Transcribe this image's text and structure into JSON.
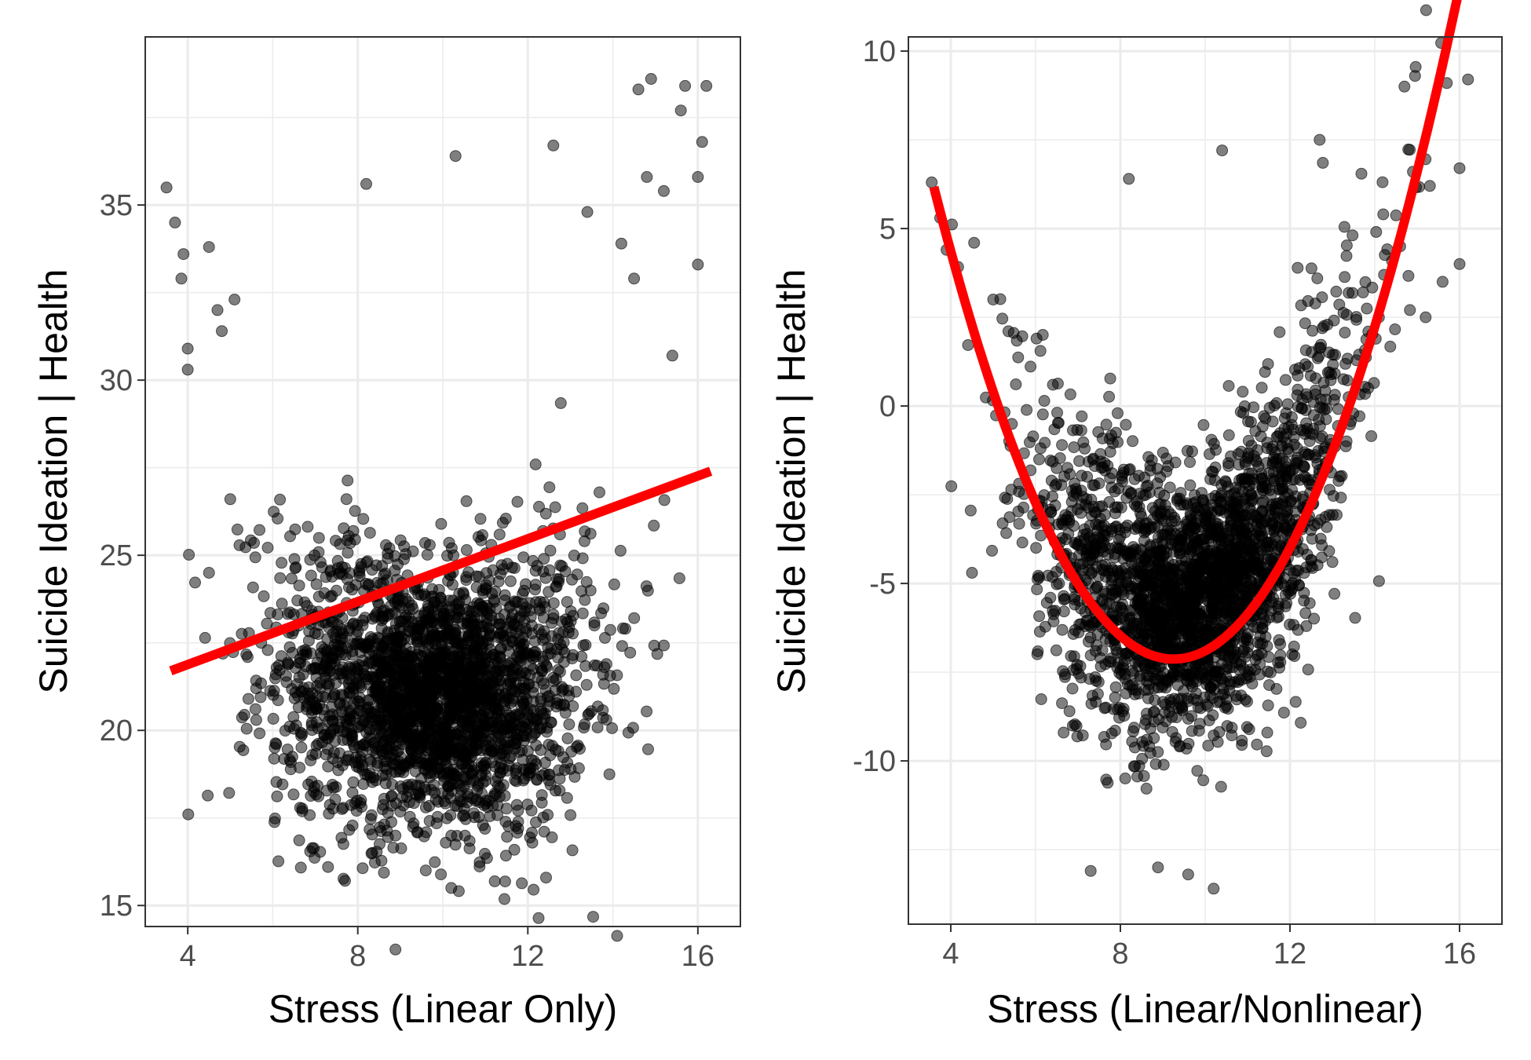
{
  "chart_data": [
    {
      "type": "scatter",
      "panel": "left",
      "xlabel": "Stress (Linear Only)",
      "ylabel": "Suicide Ideation | Health",
      "xlim": [
        3,
        17
      ],
      "ylim": [
        14.4,
        39.8
      ],
      "x_ticks": [
        4,
        8,
        12,
        16
      ],
      "y_ticks": [
        15,
        20,
        25,
        30,
        35
      ],
      "grid": true,
      "point_color": "#000000",
      "point_opacity": 0.5,
      "fit": {
        "type": "linear",
        "color": "#ff0000",
        "x_range": [
          3.6,
          16.3
        ],
        "points": [
          [
            3.6,
            21.7
          ],
          [
            16.3,
            27.4
          ]
        ]
      },
      "cloud": {
        "n": 2600,
        "center_x": 9.8,
        "sd_x": 1.8,
        "sd_y_near": 1.7,
        "fn": "quadratic",
        "coef": [
          28.5,
          -1.5,
          0.0741
        ]
      },
      "outliers": [
        [
          3.5,
          35.5
        ],
        [
          3.7,
          34.5
        ],
        [
          3.9,
          33.6
        ],
        [
          3.85,
          32.9
        ],
        [
          4.5,
          33.8
        ],
        [
          4.0,
          30.9
        ],
        [
          4.0,
          30.3
        ],
        [
          4.8,
          31.4
        ],
        [
          5.1,
          32.3
        ],
        [
          4.7,
          32.0
        ],
        [
          4.5,
          24.5
        ],
        [
          8.2,
          35.6
        ],
        [
          10.3,
          36.4
        ],
        [
          12.6,
          36.7
        ],
        [
          7.3,
          16.1
        ],
        [
          9.6,
          16.0
        ],
        [
          10.2,
          15.5
        ],
        [
          6.8,
          20.6
        ],
        [
          5.0,
          26.6
        ],
        [
          13.4,
          34.8
        ],
        [
          14.6,
          38.3
        ],
        [
          14.9,
          38.6
        ],
        [
          15.7,
          38.4
        ],
        [
          16.2,
          38.4
        ],
        [
          15.6,
          37.7
        ],
        [
          16.0,
          35.8
        ],
        [
          16.0,
          33.3
        ],
        [
          15.2,
          35.4
        ],
        [
          14.8,
          35.8
        ],
        [
          14.2,
          33.9
        ],
        [
          14.5,
          32.9
        ],
        [
          15.4,
          30.7
        ],
        [
          16.1,
          36.8
        ]
      ]
    },
    {
      "type": "scatter",
      "panel": "right",
      "xlabel": "Stress (Linear/Nonlinear)",
      "ylabel": "Suicide Ideation | Health",
      "xlim": [
        3,
        17
      ],
      "ylim": [
        -14.6,
        10.4
      ],
      "x_ticks": [
        4,
        8,
        12,
        16
      ],
      "y_ticks": [
        -10,
        -5,
        0,
        5,
        10
      ],
      "grid": true,
      "point_color": "#000000",
      "point_opacity": 0.5,
      "fit": {
        "type": "quadratic",
        "color": "#ff0000",
        "x_range": [
          3.6,
          16.3
        ],
        "coef": [
          28.5,
          -7.7,
          0.416
        ]
      },
      "cloud": {
        "n": 2600,
        "center_x": 9.8,
        "sd_x": 1.8,
        "sd_y_near": 1.7,
        "fn": "quadratic",
        "coef": [
          24.5,
          -6.6,
          0.36
        ]
      },
      "outliers": [
        [
          3.55,
          6.3
        ],
        [
          3.75,
          5.3
        ],
        [
          3.9,
          4.4
        ],
        [
          4.55,
          4.6
        ],
        [
          8.2,
          6.4
        ],
        [
          10.4,
          7.2
        ],
        [
          12.7,
          7.5
        ],
        [
          7.3,
          -13.1
        ],
        [
          9.6,
          -13.2
        ],
        [
          10.2,
          -13.6
        ],
        [
          6.8,
          -8.6
        ],
        [
          4.5,
          -4.7
        ],
        [
          5.0,
          3.0
        ],
        [
          14.7,
          9.0
        ],
        [
          14.95,
          9.3
        ],
        [
          15.7,
          9.1
        ],
        [
          16.2,
          9.2
        ],
        [
          16.0,
          6.7
        ],
        [
          16.0,
          4.0
        ],
        [
          15.3,
          6.2
        ],
        [
          14.9,
          6.6
        ],
        [
          14.2,
          5.4
        ],
        [
          14.6,
          4.5
        ],
        [
          15.6,
          3.5
        ],
        [
          15.2,
          2.5
        ]
      ]
    }
  ]
}
